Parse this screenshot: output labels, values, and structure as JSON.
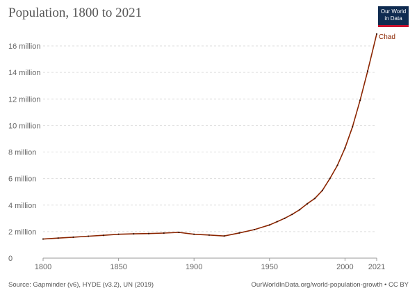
{
  "header": {
    "title": "Population, 1800 to 2021",
    "logo_line1": "Our World",
    "logo_line2": "in Data"
  },
  "footer": {
    "source": "Source: Gapminder (v6), HYDE (v3.2), UN (2019)",
    "attribution": "OurWorldInData.org/world-population-growth • CC BY"
  },
  "chart_data": {
    "type": "line",
    "title": "Population, 1800 to 2021",
    "xlabel": "",
    "ylabel": "",
    "xlim": [
      1800,
      2021
    ],
    "ylim": [
      0,
      16000000
    ],
    "x_ticks": [
      1800,
      1850,
      1900,
      1950,
      2000,
      2021
    ],
    "y_ticks": [
      0,
      2000000,
      4000000,
      6000000,
      8000000,
      10000000,
      12000000,
      14000000,
      16000000
    ],
    "y_tick_labels": [
      "0",
      "2 million",
      "4 million",
      "6 million",
      "8 million",
      "10 million",
      "12 million",
      "14 million",
      "16 million"
    ],
    "grid": "horizontal dashed",
    "color": "#8b2500",
    "series": [
      {
        "name": "Chad",
        "x": [
          1800,
          1810,
          1820,
          1830,
          1840,
          1850,
          1860,
          1870,
          1880,
          1890,
          1900,
          1910,
          1920,
          1930,
          1940,
          1950,
          1955,
          1960,
          1965,
          1970,
          1975,
          1980,
          1985,
          1990,
          1995,
          2000,
          2005,
          2010,
          2015,
          2021
        ],
        "values": [
          1440000,
          1510000,
          1580000,
          1650000,
          1720000,
          1800000,
          1830000,
          1850000,
          1890000,
          1940000,
          1800000,
          1740000,
          1670000,
          1900000,
          2150000,
          2500000,
          2750000,
          3000000,
          3300000,
          3650000,
          4100000,
          4500000,
          5100000,
          6000000,
          7000000,
          8300000,
          9900000,
          11900000,
          14100000,
          16900000
        ]
      }
    ]
  }
}
